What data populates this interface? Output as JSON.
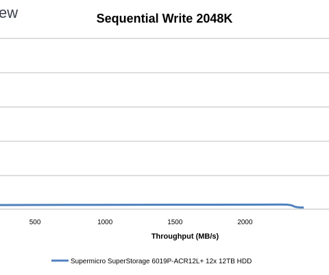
{
  "logo": {
    "text_fragment": "ew"
  },
  "chart_data": {
    "type": "line",
    "title": "Sequential Write 2048K",
    "xlabel": "Throughput (MB/s)",
    "ylabel": "",
    "xlim": [
      250,
      2600
    ],
    "x_ticks": [
      "500",
      "1000",
      "1500",
      "2000"
    ],
    "x_tick_values": [
      500,
      1000,
      1500,
      2000
    ],
    "gridlines": "horizontal",
    "legend_position": "bottom",
    "series": [
      {
        "name": "Supermicro SuperStorage 6019P-ACR12L+ 12x 12TB HDD",
        "color": "#4f81bd",
        "points": [
          [
            250,
            0.4
          ],
          [
            700,
            0.42
          ],
          [
            1200,
            0.44
          ],
          [
            1800,
            0.45
          ],
          [
            2100,
            0.46
          ],
          [
            2250,
            0.47
          ],
          [
            2300,
            0.46
          ],
          [
            2330,
            0.38
          ],
          [
            2360,
            0.12
          ],
          [
            2390,
            0.05
          ],
          [
            2420,
            0.04
          ]
        ]
      }
    ]
  }
}
